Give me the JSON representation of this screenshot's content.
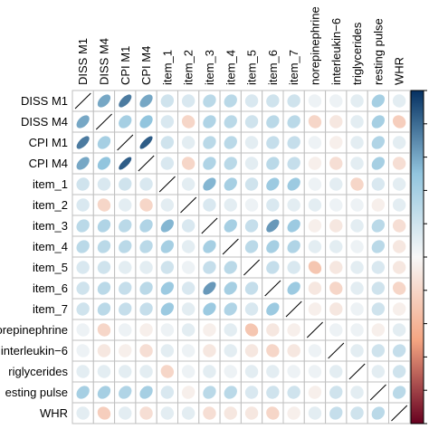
{
  "chart_data": {
    "type": "heatmap",
    "variables": [
      "DISS M1",
      "DISS M4",
      "CPI M1",
      "CPI M4",
      "item_1",
      "item_2",
      "item_3",
      "item_4",
      "item_5",
      "item_6",
      "item_7",
      "norepinephrine",
      "interleukin−6",
      "triglycerides",
      "resting pulse",
      "WHR"
    ],
    "row_labels": [
      "DISS M1",
      "DISS M4",
      "CPI M1",
      "CPI M4",
      "item_1",
      "item_2",
      "item_3",
      "item_4",
      "item_5",
      "item_6",
      "item_7",
      "orepinephrine",
      "interleukin−6",
      "riglycerides",
      "esting pulse",
      "WHR"
    ],
    "column_labels": [
      "DISS M1",
      "DISS M4",
      "CPI M1",
      "CPI M4",
      "item_1",
      "item_2",
      "item_3",
      "item_4",
      "item_5",
      "item_6",
      "item_7",
      "norepinephrine",
      "interleukin−6",
      "triglycerides",
      "resting pulse",
      "WHR"
    ],
    "matrix": [
      [
        1,
        0.6,
        0.75,
        0.6,
        0.2,
        0.15,
        0.3,
        0.3,
        0.15,
        0.2,
        0.2,
        0.05,
        0.05,
        0.1,
        0.4,
        0.1
      ],
      [
        0.6,
        1,
        0.4,
        0.5,
        0.15,
        -0.2,
        0.35,
        0.3,
        0.2,
        0.3,
        0.3,
        -0.2,
        -0.1,
        0.1,
        0.4,
        -0.25
      ],
      [
        0.75,
        0.4,
        1,
        0.85,
        0.2,
        0.1,
        0.3,
        0.3,
        0.1,
        0.25,
        0.25,
        0.05,
        -0.05,
        0.1,
        0.35,
        0.1
      ],
      [
        0.6,
        0.5,
        0.85,
        1,
        0.15,
        -0.2,
        0.35,
        0.3,
        0.1,
        0.3,
        0.25,
        -0.05,
        -0.15,
        0.1,
        0.4,
        -0.15
      ],
      [
        0.2,
        0.15,
        0.2,
        0.15,
        1,
        0.1,
        0.55,
        0.4,
        0.2,
        0.45,
        0.45,
        0.05,
        0.1,
        -0.2,
        0.15,
        0.1
      ],
      [
        0.15,
        -0.2,
        0.1,
        -0.2,
        0.1,
        1,
        0.15,
        0.1,
        0.05,
        0.15,
        0.1,
        0.1,
        0.05,
        0.05,
        -0.05,
        0.1
      ],
      [
        0.3,
        0.35,
        0.3,
        0.35,
        0.55,
        0.15,
        1,
        0.4,
        0.25,
        0.65,
        0.45,
        -0.05,
        -0.1,
        0.1,
        0.3,
        -0.15
      ],
      [
        0.3,
        0.3,
        0.3,
        0.3,
        0.4,
        0.1,
        0.4,
        1,
        0.3,
        0.4,
        0.35,
        0.1,
        0.1,
        0.05,
        0.3,
        -0.1
      ],
      [
        0.15,
        0.2,
        0.1,
        0.1,
        0.2,
        0.05,
        0.25,
        0.3,
        1,
        0.25,
        0.15,
        -0.3,
        -0.1,
        0.1,
        0.15,
        -0.1
      ],
      [
        0.2,
        0.3,
        0.25,
        0.3,
        0.45,
        0.15,
        0.65,
        0.4,
        0.25,
        1,
        0.45,
        -0.1,
        -0.2,
        0.1,
        0.2,
        -0.2
      ],
      [
        0.2,
        0.3,
        0.25,
        0.25,
        0.45,
        0.1,
        0.45,
        0.35,
        0.15,
        0.45,
        1,
        -0.05,
        -0.1,
        0.05,
        0.2,
        -0.05
      ],
      [
        0.05,
        -0.2,
        0.05,
        -0.05,
        0.05,
        0.1,
        -0.05,
        0.1,
        -0.3,
        -0.1,
        -0.05,
        1,
        0.05,
        0.05,
        -0.05,
        0.1
      ],
      [
        0.05,
        -0.1,
        -0.05,
        -0.15,
        0.1,
        0.05,
        -0.1,
        0.1,
        -0.1,
        -0.2,
        -0.1,
        0.05,
        1,
        0.1,
        0.2,
        0.25
      ],
      [
        0.1,
        0.1,
        0.1,
        0.1,
        -0.2,
        0.05,
        0.1,
        0.05,
        0.1,
        0.1,
        0.05,
        0.05,
        0.1,
        1,
        0.1,
        0.2
      ],
      [
        0.4,
        0.4,
        0.35,
        0.4,
        0.15,
        -0.05,
        0.3,
        0.3,
        0.15,
        0.2,
        0.2,
        -0.05,
        0.2,
        0.1,
        1,
        0.3
      ],
      [
        0.1,
        -0.25,
        0.1,
        -0.15,
        0.1,
        0.1,
        -0.15,
        -0.1,
        -0.1,
        -0.2,
        -0.05,
        0.1,
        0.25,
        0.2,
        0.3,
        1
      ]
    ],
    "value_range": [
      -1,
      1
    ],
    "legend": "right",
    "grid": true,
    "colors": {
      "negative": "#67001f",
      "mid_negative": "#f4a582",
      "neutral": "#f7f7f7",
      "mid_positive": "#92c5de",
      "positive": "#053061",
      "grid": "#bfbfbf",
      "diagonal": "#000000"
    }
  }
}
